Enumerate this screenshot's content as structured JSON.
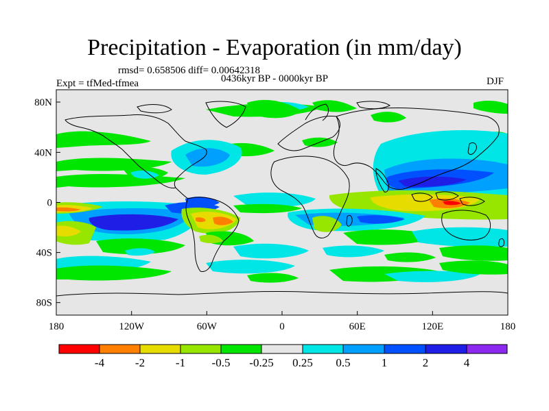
{
  "title": "Precipitation - Evaporation (in mm/day)",
  "stats_text": "rmsd= 0.658506 diff= 0.00642318",
  "period_text": "0436kyr BP - 0000kyr BP",
  "experiment_text": "Expt = tfMed-tfmea",
  "season_text": "DJF",
  "map": {
    "projection": "cylindrical equidistant",
    "lon_range": [
      -180,
      180
    ],
    "lat_range": [
      -90,
      90
    ],
    "x_ticks": [
      "180",
      "120W",
      "60W",
      "0",
      "60E",
      "120E",
      "180"
    ],
    "y_ticks": [
      "80N",
      "40N",
      "0",
      "40S",
      "80S"
    ]
  },
  "colorbar": {
    "labels": [
      "-4",
      "-2",
      "-1",
      "-0.5",
      "-0.25",
      "0.25",
      "0.5",
      "1",
      "2",
      "4"
    ],
    "colors": [
      "#ff0000",
      "#ff8000",
      "#e6dc00",
      "#96e600",
      "#00e600",
      "#e6e6e6",
      "#00e6e6",
      "#00a0ff",
      "#0050ff",
      "#1e1ee6",
      "#8c28f0"
    ]
  }
}
